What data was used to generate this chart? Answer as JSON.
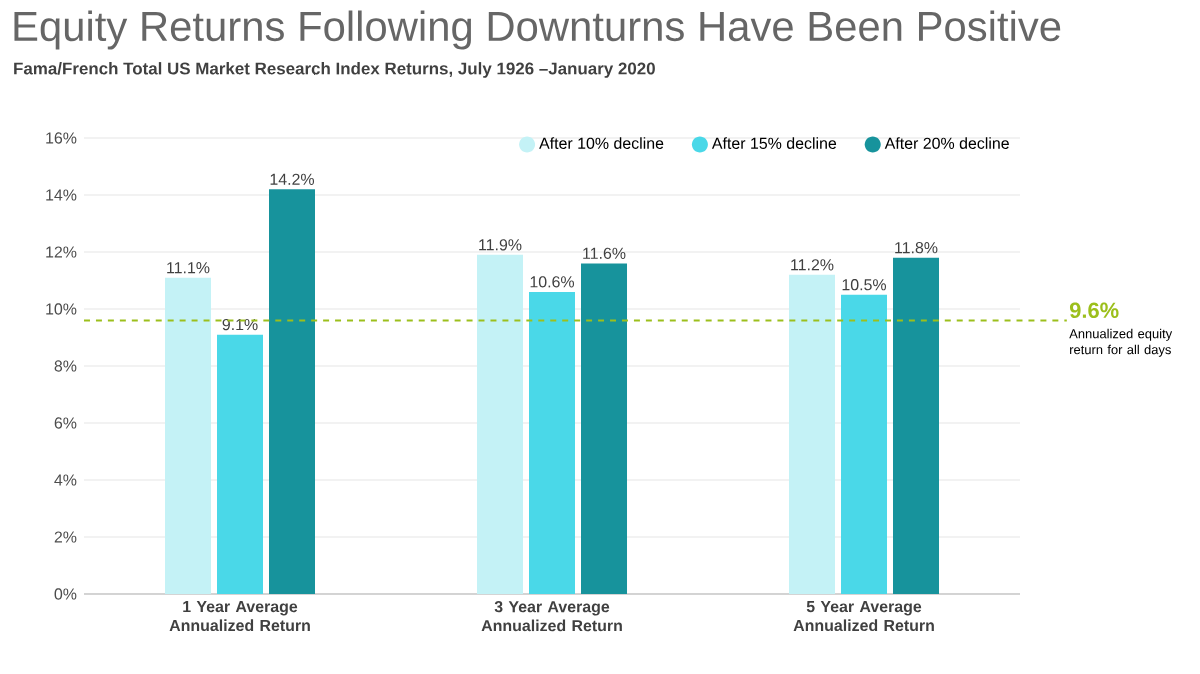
{
  "chart_data": {
    "type": "bar",
    "title": "Equity Returns Following Downturns Have Been Positive",
    "subtitle": "Fama/French Total US Market Research Index Returns, July 1926 –January 2020",
    "categories": [
      "1 Year Average Annualized Return",
      "3 Year Average Annualized Return",
      "5 Year Average Annualized Return"
    ],
    "series": [
      {
        "name": "After 10% decline",
        "color": "#c4f2f6",
        "values": [
          11.1,
          11.9,
          11.2
        ],
        "value_labels": [
          "11.1%",
          "11.9%",
          "11.2%"
        ]
      },
      {
        "name": "After 15% decline",
        "color": "#4ad8e8",
        "values": [
          9.1,
          10.6,
          10.5
        ],
        "value_labels": [
          "9.1%",
          "10.6%",
          "10.5%"
        ]
      },
      {
        "name": "After 20% decline",
        "color": "#17939c",
        "values": [
          14.2,
          11.6,
          11.8
        ],
        "value_labels": [
          "14.2%",
          "11.6%",
          "11.8%"
        ]
      }
    ],
    "ylim": [
      0,
      16
    ],
    "yticks": [
      {
        "value": 0,
        "label": "0%"
      },
      {
        "value": 2,
        "label": "2%"
      },
      {
        "value": 4,
        "label": "4%"
      },
      {
        "value": 6,
        "label": "6%"
      },
      {
        "value": 8,
        "label": "8%"
      },
      {
        "value": 10,
        "label": "10%"
      },
      {
        "value": 12,
        "label": "12%"
      },
      {
        "value": 14,
        "label": "14%"
      },
      {
        "value": 16,
        "label": "16%"
      }
    ],
    "grid": "y",
    "legend": "top right",
    "ref_lines": [
      {
        "axis": "y",
        "value": 9.6,
        "label": "9.6%",
        "color": "#9cbf1c",
        "line_style": "dashed"
      }
    ],
    "annotations": [
      "Annualized equity return for all days"
    ]
  }
}
